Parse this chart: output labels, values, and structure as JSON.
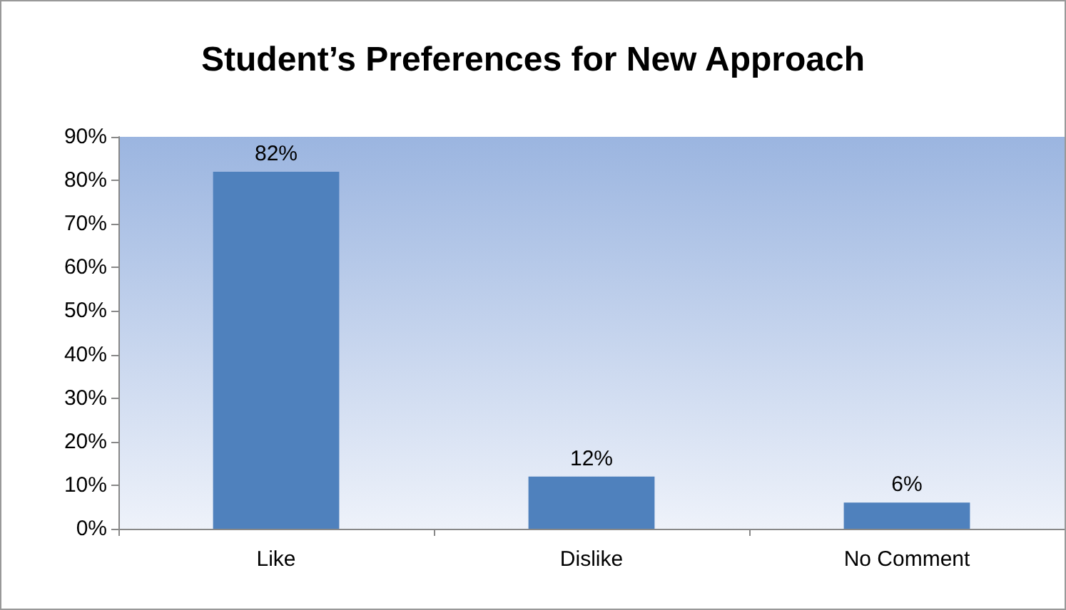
{
  "chart_data": {
    "type": "bar",
    "title": "Student’s Preferences for New Approach",
    "categories": [
      "Like",
      "Dislike",
      "No Comment"
    ],
    "values": [
      82,
      12,
      6
    ],
    "value_labels": [
      "82%",
      "12%",
      "6%"
    ],
    "color": "#4f81bd",
    "ylim": [
      0,
      90
    ],
    "yticks": [
      {
        "value": 0,
        "label": "0%"
      },
      {
        "value": 10,
        "label": "10%"
      },
      {
        "value": 20,
        "label": "20%"
      },
      {
        "value": 30,
        "label": "30%"
      },
      {
        "value": 40,
        "label": "40%"
      },
      {
        "value": 50,
        "label": "50%"
      },
      {
        "value": 60,
        "label": "60%"
      },
      {
        "value": 70,
        "label": "70%"
      },
      {
        "value": 80,
        "label": "80%"
      },
      {
        "value": 90,
        "label": "90%"
      }
    ],
    "grid": false
  }
}
